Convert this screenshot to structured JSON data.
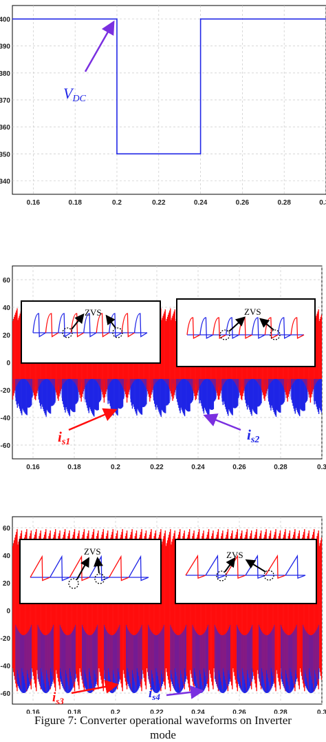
{
  "caption": {
    "line1": "Figure 7: Converter operational waveforms on Inverter",
    "line2": "mode"
  },
  "colors": {
    "blue": "#1f25e6",
    "red": "#ff0d0d",
    "arrow_purple": "#7a2fe0",
    "grid": "#c8c8c8"
  },
  "chart_data": [
    {
      "type": "line",
      "xlim": [
        0.15,
        0.3
      ],
      "ylim": [
        335,
        405
      ],
      "x_ticks": [
        "0.16",
        "0.18",
        "0.2",
        "0.22",
        "0.24",
        "0.26",
        "0.28",
        "0.30"
      ],
      "y_ticks": [
        "400",
        "390",
        "380",
        "370",
        "360",
        "350",
        "340"
      ],
      "x_tick_values": [
        0.16,
        0.18,
        0.2,
        0.22,
        0.24,
        0.26,
        0.28,
        0.3
      ],
      "y_tick_values": [
        400,
        390,
        380,
        370,
        360,
        350,
        340
      ],
      "series": [
        {
          "color": "#1f25e6",
          "x": [
            0.15,
            0.2,
            0.2,
            0.24,
            0.24,
            0.3
          ],
          "y": [
            400,
            400,
            350,
            350,
            400,
            400
          ]
        }
      ],
      "annotation": {
        "label_main": "V",
        "label_sub": "DC",
        "target": [
          0.2,
          400
        ]
      }
    },
    {
      "type": "line",
      "xlim": [
        0.15,
        0.3
      ],
      "ylim": [
        -70,
        70
      ],
      "x_ticks": [
        "0.16",
        "0.18",
        "0.2",
        "0.22",
        "0.24",
        "0.26",
        "0.28",
        "0.3"
      ],
      "y_ticks": [
        "60",
        "40",
        "20",
        "0",
        "-20",
        "-40",
        "-60"
      ],
      "x_tick_values": [
        0.16,
        0.18,
        0.2,
        0.22,
        0.24,
        0.26,
        0.28,
        0.3
      ],
      "y_tick_values": [
        60,
        40,
        20,
        0,
        -20,
        -40,
        -60
      ],
      "series": [
        {
          "color": "#ff0d0d",
          "envelope_pos": 40,
          "envelope_neg": -20
        },
        {
          "color": "#1f25e6",
          "envelope_pos": 0,
          "envelope_neg": -40
        }
      ],
      "annotations": [
        {
          "label_main": "i",
          "label_sub": "s1",
          "color": "#ff0d0d"
        },
        {
          "label_main": "i",
          "label_sub": "s2",
          "color": "#1f25e6"
        }
      ],
      "insets": [
        {
          "label": "ZVS"
        },
        {
          "label": "ZVS"
        }
      ]
    },
    {
      "type": "line",
      "xlim": [
        0.15,
        0.3
      ],
      "ylim": [
        -68,
        68
      ],
      "x_ticks": [
        "0.16",
        "0.18",
        "0.2",
        "0.22",
        "0.24",
        "0.26",
        "0.28",
        "0.3"
      ],
      "y_ticks": [
        "60",
        "40",
        "20",
        "0",
        "-20",
        "-40",
        "-60"
      ],
      "x_tick_values": [
        0.16,
        0.18,
        0.2,
        0.22,
        0.24,
        0.26,
        0.28,
        0.3
      ],
      "y_tick_values": [
        60,
        40,
        20,
        0,
        -20,
        -40,
        -60
      ],
      "series": [
        {
          "color": "#ff0d0d",
          "envelope_pos": 60,
          "envelope_neg": -60
        },
        {
          "color": "#1f25e6",
          "envelope_pos": 60,
          "envelope_neg": -60
        }
      ],
      "annotations": [
        {
          "label_main": "i",
          "label_sub": "s3",
          "color": "#ff0d0d"
        },
        {
          "label_main": "i",
          "label_sub": "s4",
          "color": "#1f25e6"
        }
      ],
      "insets": [
        {
          "label": "ZVS"
        },
        {
          "label": "ZVS"
        }
      ]
    }
  ]
}
